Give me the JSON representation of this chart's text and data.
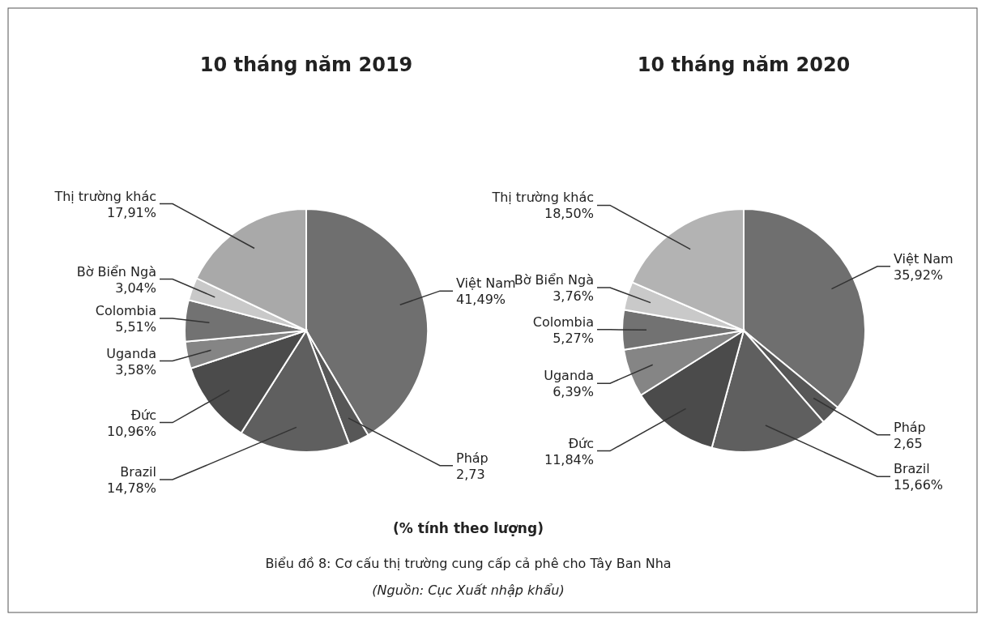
{
  "chart_data": [
    {
      "type": "pie",
      "title": "10 tháng năm 2019",
      "categories": [
        "Việt Nam",
        "Pháp",
        "Brazil",
        "Đức",
        "Uganda",
        "Colombia",
        "Bờ Biển Ngà",
        "Thị trường khác"
      ],
      "values": [
        41.49,
        2.73,
        14.78,
        10.96,
        3.58,
        5.51,
        3.04,
        17.91
      ],
      "value_labels": [
        "41,49%",
        "2,73",
        "14,78%",
        "10,96%",
        "3,58%",
        "5,51%",
        "3,04%",
        "17,91%"
      ],
      "colors": [
        "#6f6f6f",
        "#575757",
        "#5f5f5f",
        "#4b4b4b",
        "#858585",
        "#727272",
        "#c9c9c9",
        "#a9a9a9"
      ]
    },
    {
      "type": "pie",
      "title": "10 tháng năm 2020",
      "categories": [
        "Việt Nam",
        "Pháp",
        "Brazil",
        "Đức",
        "Uganda",
        "Colombia",
        "Bờ Biển Ngà",
        "Thị trường khác"
      ],
      "values": [
        35.92,
        2.65,
        15.66,
        11.84,
        6.39,
        5.27,
        3.76,
        18.5
      ],
      "value_labels": [
        "35,92%",
        "2,65",
        "15,66%",
        "11,84%",
        "6,39%",
        "5,27%",
        "3,76%",
        "18,50%"
      ],
      "colors": [
        "#6f6f6f",
        "#575757",
        "#5f5f5f",
        "#4b4b4b",
        "#858585",
        "#727272",
        "#c9c9c9",
        "#b3b3b3"
      ],
      "annotations": [
        "(% tính theo lượng)",
        "Biểu đồ 8: Cơ cấu thị trường cung cấp cả phê cho Tây Ban Nha",
        "(Nguồn: Cục Xuất nhập khẩu)"
      ]
    }
  ]
}
